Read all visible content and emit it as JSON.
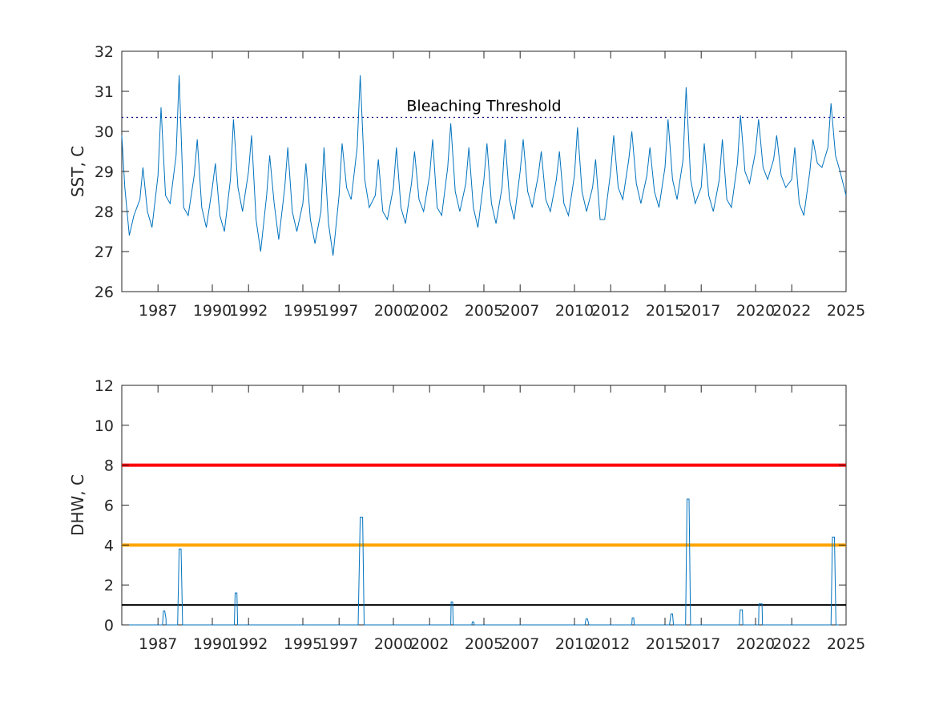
{
  "chart_data": [
    {
      "type": "line",
      "title": "",
      "xlabel": "",
      "ylabel": "SST, C",
      "ylim": [
        26,
        32
      ],
      "xlim": [
        "1985-01-01",
        "2025-01-01"
      ],
      "yticks": [
        "26",
        "27",
        "28",
        "29",
        "30",
        "31",
        "32"
      ],
      "xticks": [
        "1987",
        "1990",
        "1992",
        "1995",
        "1997",
        "2000",
        "2002",
        "2005",
        "2007",
        "2010",
        "2012",
        "2015",
        "2017",
        "2020",
        "2022",
        "2025"
      ],
      "grid": false,
      "series": [
        {
          "color": "#0072BD",
          "x": [
            "1985-01",
            "1985-03",
            "1985-06",
            "1985-09",
            "1986-01",
            "1986-03",
            "1986-06",
            "1986-09",
            "1987-01",
            "1987-03",
            "1987-06",
            "1987-09",
            "1988-01",
            "1988-03",
            "1988-06",
            "1988-09",
            "1989-01",
            "1989-03",
            "1989-06",
            "1989-09",
            "1990-01",
            "1990-03",
            "1990-06",
            "1990-09",
            "1991-01",
            "1991-03",
            "1991-06",
            "1991-09",
            "1992-01",
            "1992-03",
            "1992-06",
            "1992-09",
            "1993-01",
            "1993-03",
            "1993-06",
            "1993-09",
            "1994-01",
            "1994-03",
            "1994-06",
            "1994-09",
            "1995-01",
            "1995-03",
            "1995-06",
            "1995-09",
            "1996-01",
            "1996-03",
            "1996-06",
            "1996-09",
            "1997-01",
            "1997-03",
            "1997-06",
            "1997-09",
            "1998-01",
            "1998-03",
            "1998-06",
            "1998-09",
            "1999-01",
            "1999-03",
            "1999-06",
            "1999-09",
            "2000-01",
            "2000-03",
            "2000-06",
            "2000-09",
            "2001-01",
            "2001-03",
            "2001-06",
            "2001-09",
            "2002-01",
            "2002-03",
            "2002-06",
            "2002-09",
            "2003-01",
            "2003-03",
            "2003-06",
            "2003-09",
            "2004-01",
            "2004-03",
            "2004-06",
            "2004-09",
            "2005-01",
            "2005-03",
            "2005-06",
            "2005-09",
            "2006-01",
            "2006-03",
            "2006-06",
            "2006-09",
            "2007-01",
            "2007-03",
            "2007-06",
            "2007-09",
            "2008-01",
            "2008-03",
            "2008-06",
            "2008-09",
            "2009-01",
            "2009-03",
            "2009-06",
            "2009-09",
            "2010-01",
            "2010-03",
            "2010-06",
            "2010-09",
            "2011-01",
            "2011-03",
            "2011-06",
            "2011-09",
            "2012-01",
            "2012-03",
            "2012-06",
            "2012-09",
            "2013-01",
            "2013-03",
            "2013-06",
            "2013-09",
            "2014-01",
            "2014-03",
            "2014-06",
            "2014-09",
            "2015-01",
            "2015-03",
            "2015-06",
            "2015-09",
            "2016-01",
            "2016-03",
            "2016-06",
            "2016-09",
            "2017-01",
            "2017-03",
            "2017-06",
            "2017-09",
            "2018-01",
            "2018-03",
            "2018-06",
            "2018-09",
            "2019-01",
            "2019-03",
            "2019-06",
            "2019-09",
            "2020-01",
            "2020-03",
            "2020-06",
            "2020-09",
            "2021-01",
            "2021-03",
            "2021-06",
            "2021-09",
            "2022-01",
            "2022-03",
            "2022-06",
            "2022-09",
            "2023-01",
            "2023-03",
            "2023-06",
            "2023-09",
            "2024-01",
            "2024-03",
            "2024-06",
            "2024-09",
            "2025-01"
          ],
          "values": [
            29.9,
            28.6,
            27.4,
            27.9,
            28.3,
            29.1,
            28.0,
            27.6,
            28.9,
            30.6,
            28.4,
            28.2,
            29.4,
            31.4,
            28.1,
            27.9,
            28.9,
            29.8,
            28.1,
            27.6,
            28.6,
            29.2,
            27.9,
            27.5,
            28.8,
            30.3,
            28.6,
            28.0,
            29.0,
            29.9,
            27.8,
            27.0,
            28.4,
            29.4,
            28.2,
            27.3,
            28.6,
            29.6,
            28.0,
            27.5,
            28.2,
            29.2,
            27.8,
            27.2,
            28.0,
            29.6,
            27.7,
            26.9,
            28.4,
            29.7,
            28.6,
            28.3,
            29.6,
            31.4,
            28.8,
            28.1,
            28.4,
            29.3,
            28.0,
            27.8,
            28.6,
            29.6,
            28.1,
            27.7,
            28.7,
            29.5,
            28.3,
            28.0,
            28.9,
            29.8,
            28.1,
            27.9,
            29.1,
            30.2,
            28.5,
            28.0,
            28.7,
            29.6,
            28.1,
            27.6,
            28.8,
            29.7,
            28.2,
            27.7,
            28.6,
            29.8,
            28.3,
            27.8,
            29.0,
            29.8,
            28.5,
            28.1,
            28.9,
            29.5,
            28.3,
            28.0,
            28.8,
            29.5,
            28.2,
            27.9,
            28.9,
            30.1,
            28.5,
            28.0,
            28.6,
            29.3,
            27.8,
            27.8,
            29.0,
            29.9,
            28.6,
            28.3,
            29.3,
            30.0,
            28.7,
            28.2,
            28.9,
            29.6,
            28.5,
            28.1,
            29.1,
            30.3,
            28.8,
            28.3,
            29.3,
            31.1,
            28.8,
            28.2,
            28.6,
            29.7,
            28.4,
            28.0,
            28.8,
            29.8,
            28.3,
            28.1,
            29.2,
            30.4,
            29.0,
            28.7,
            29.5,
            30.3,
            29.1,
            28.8,
            29.3,
            29.9,
            28.9,
            28.6,
            28.8,
            29.6,
            28.2,
            27.9,
            29.0,
            29.8,
            29.2,
            29.1,
            29.6,
            30.7,
            29.4,
            29.0,
            28.4
          ]
        }
      ],
      "reference_line": {
        "value": 30.35,
        "label": "Bleaching Threshold",
        "color": "#000080"
      }
    },
    {
      "type": "line",
      "title": "",
      "xlabel": "",
      "ylabel": "DHW, C",
      "ylim": [
        0,
        12
      ],
      "xlim": [
        "1985-01-01",
        "2025-01-01"
      ],
      "yticks": [
        "0",
        "2",
        "4",
        "6",
        "8",
        "10",
        "12"
      ],
      "xticks": [
        "1987",
        "1990",
        "1992",
        "1995",
        "1997",
        "2000",
        "2002",
        "2005",
        "2007",
        "2010",
        "2012",
        "2015",
        "2017",
        "2020",
        "2022",
        "2025"
      ],
      "grid": false,
      "series": [
        {
          "color": "#0072BD",
          "x": [
            "1985-01-01",
            "1987-04-01",
            "1987-04-20",
            "1987-05-15",
            "1987-06-10",
            "1987-06-12",
            "1988-02-01",
            "1988-03-01",
            "1988-04-10",
            "1988-05-10",
            "1988-05-12",
            "1991-03-20",
            "1991-04-05",
            "1991-05-10",
            "1991-05-25",
            "1998-01-20",
            "1998-03-01",
            "1998-04-20",
            "1998-05-20",
            "2003-03-01",
            "2003-03-10",
            "2003-04-10",
            "2003-04-20",
            "2004-05-01",
            "2004-05-10",
            "2004-06-10",
            "2004-06-20",
            "2010-08-01",
            "2010-08-20",
            "2010-09-20",
            "2010-10-20",
            "2013-03-01",
            "2013-03-10",
            "2013-04-10",
            "2013-04-20",
            "2015-04-01",
            "2015-05-01",
            "2015-06-01",
            "2015-06-20",
            "2016-02-20",
            "2016-03-20",
            "2016-04-30",
            "2016-05-30",
            "2019-02-10",
            "2019-02-25",
            "2019-04-10",
            "2019-04-20",
            "2020-03-01",
            "2020-03-10",
            "2020-05-10",
            "2020-05-20",
            "2024-03-01",
            "2024-04-01",
            "2024-05-10",
            "2024-06-10",
            "2025-01-01"
          ],
          "values": [
            0,
            0,
            0.7,
            0.7,
            0.3,
            0,
            0,
            3.8,
            3.8,
            0,
            0,
            0,
            1.6,
            1.6,
            0,
            0,
            5.4,
            5.4,
            0,
            0,
            1.15,
            1.15,
            0,
            0,
            0.15,
            0.15,
            0,
            0,
            0.3,
            0.3,
            0,
            0,
            0.35,
            0.35,
            0,
            0,
            0.55,
            0.55,
            0,
            0,
            6.3,
            6.3,
            0,
            0,
            0.75,
            0.75,
            0,
            0,
            1.05,
            1.05,
            0,
            0,
            4.4,
            4.4,
            0,
            0
          ]
        }
      ],
      "reference_lines": [
        {
          "value": 8,
          "color": "#FF0000"
        },
        {
          "value": 4,
          "color": "#FFA500"
        },
        {
          "value": 1,
          "color": "#000000"
        }
      ]
    }
  ]
}
